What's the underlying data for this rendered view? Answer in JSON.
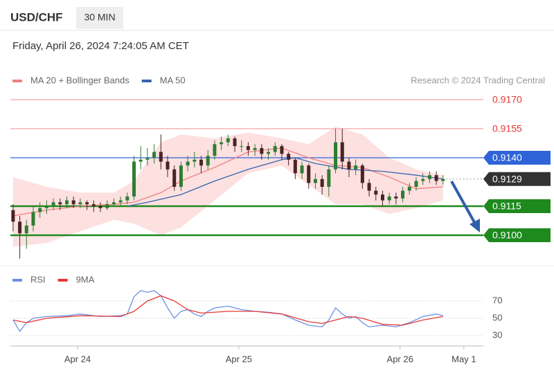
{
  "header": {
    "symbol": "USD/CHF",
    "interval": "30 MIN",
    "datetime": "Friday, April 26, 2024 7:24:05 AM CET",
    "credit": "Research © 2024 Trading Central"
  },
  "chart_data": [
    {
      "type": "candlestick",
      "xlim": [
        -0.4,
        70
      ],
      "ylim": [
        0.9085,
        0.9175
      ],
      "up_color": "#2e7d32",
      "down_color": "#4a2323",
      "candles": [
        [
          0.9113,
          0.9116,
          0.9102,
          0.9107
        ],
        [
          0.9107,
          0.911,
          0.9088,
          0.9101
        ],
        [
          0.9101,
          0.9108,
          0.9093,
          0.9105
        ],
        [
          0.9105,
          0.9115,
          0.9102,
          0.9112
        ],
        [
          0.9112,
          0.9117,
          0.9109,
          0.9114
        ],
        [
          0.9114,
          0.9118,
          0.9111,
          0.9115
        ],
        [
          0.9115,
          0.9119,
          0.9113,
          0.9117
        ],
        [
          0.9117,
          0.9119,
          0.9113,
          0.9116
        ],
        [
          0.9116,
          0.912,
          0.9114,
          0.9118
        ],
        [
          0.9118,
          0.912,
          0.9114,
          0.9116
        ],
        [
          0.9116,
          0.9119,
          0.9114,
          0.9117
        ],
        [
          0.9117,
          0.9118,
          0.9113,
          0.9116
        ],
        [
          0.9116,
          0.9118,
          0.9112,
          0.9115
        ],
        [
          0.9115,
          0.9117,
          0.9112,
          0.9114
        ],
        [
          0.9114,
          0.9118,
          0.9113,
          0.9116
        ],
        [
          0.9116,
          0.9119,
          0.9115,
          0.9117
        ],
        [
          0.9117,
          0.912,
          0.9115,
          0.9118
        ],
        [
          0.9118,
          0.9122,
          0.9116,
          0.912
        ],
        [
          0.912,
          0.9141,
          0.9118,
          0.9138
        ],
        [
          0.9138,
          0.9146,
          0.9134,
          0.9139
        ],
        [
          0.9139,
          0.9145,
          0.9136,
          0.914
        ],
        [
          0.914,
          0.9147,
          0.9137,
          0.9143
        ],
        [
          0.9143,
          0.9152,
          0.9134,
          0.9138
        ],
        [
          0.9138,
          0.9141,
          0.913,
          0.9134
        ],
        [
          0.9134,
          0.9136,
          0.9123,
          0.9125
        ],
        [
          0.9125,
          0.9138,
          0.9123,
          0.9136
        ],
        [
          0.9136,
          0.9141,
          0.9133,
          0.9138
        ],
        [
          0.9138,
          0.9143,
          0.9135,
          0.9139
        ],
        [
          0.9139,
          0.9141,
          0.9132,
          0.9136
        ],
        [
          0.9136,
          0.9144,
          0.9134,
          0.9141
        ],
        [
          0.9141,
          0.9149,
          0.9139,
          0.9147
        ],
        [
          0.9147,
          0.9151,
          0.9144,
          0.9148
        ],
        [
          0.9148,
          0.9152,
          0.9146,
          0.915
        ],
        [
          0.915,
          0.9151,
          0.9143,
          0.9146
        ],
        [
          0.9146,
          0.9149,
          0.9143,
          0.9146
        ],
        [
          0.9146,
          0.9148,
          0.9141,
          0.9144
        ],
        [
          0.9144,
          0.9147,
          0.9141,
          0.9145
        ],
        [
          0.9145,
          0.9147,
          0.9139,
          0.9142
        ],
        [
          0.9142,
          0.9145,
          0.9139,
          0.9143
        ],
        [
          0.9143,
          0.9148,
          0.9141,
          0.9146
        ],
        [
          0.9146,
          0.9147,
          0.9139,
          0.9142
        ],
        [
          0.9142,
          0.9143,
          0.9136,
          0.9139
        ],
        [
          0.9139,
          0.914,
          0.9129,
          0.9132
        ],
        [
          0.9132,
          0.9138,
          0.9129,
          0.9136
        ],
        [
          0.9136,
          0.9137,
          0.9124,
          0.9127
        ],
        [
          0.9127,
          0.9132,
          0.9124,
          0.9129
        ],
        [
          0.9129,
          0.9131,
          0.9121,
          0.9125
        ],
        [
          0.9125,
          0.9136,
          0.912,
          0.9134
        ],
        [
          0.9134,
          0.9155,
          0.9132,
          0.9148
        ],
        [
          0.9148,
          0.9155,
          0.9134,
          0.9138
        ],
        [
          0.9138,
          0.914,
          0.913,
          0.9134
        ],
        [
          0.9134,
          0.9139,
          0.9131,
          0.9136
        ],
        [
          0.9136,
          0.9137,
          0.9124,
          0.9127
        ],
        [
          0.9127,
          0.9129,
          0.912,
          0.9123
        ],
        [
          0.9123,
          0.9125,
          0.9118,
          0.9121
        ],
        [
          0.9121,
          0.9123,
          0.9115,
          0.9118
        ],
        [
          0.9118,
          0.9122,
          0.9116,
          0.912
        ],
        [
          0.912,
          0.9122,
          0.9116,
          0.9119
        ],
        [
          0.9119,
          0.9125,
          0.9117,
          0.9123
        ],
        [
          0.9123,
          0.9127,
          0.9121,
          0.9125
        ],
        [
          0.9125,
          0.913,
          0.9123,
          0.9128
        ],
        [
          0.9128,
          0.9132,
          0.9126,
          0.9129
        ],
        [
          0.9129,
          0.9133,
          0.9127,
          0.9131
        ],
        [
          0.9131,
          0.9133,
          0.9126,
          0.9128
        ],
        [
          0.9128,
          0.9131,
          0.9126,
          0.9129
        ]
      ],
      "series": [
        {
          "name": "MA 20 + Bollinger Bands",
          "color": "#f08080",
          "band_color": "#fde0e0",
          "x": [
            0,
            5,
            10,
            15,
            18,
            22,
            25,
            30,
            35,
            40,
            44,
            48,
            52,
            56,
            60,
            64
          ],
          "values": [
            0.911,
            0.9113,
            0.9115,
            0.9116,
            0.9117,
            0.9122,
            0.9128,
            0.9135,
            0.9143,
            0.9145,
            0.914,
            0.9136,
            0.9135,
            0.913,
            0.9124,
            0.9125
          ],
          "upper": [
            0.913,
            0.9125,
            0.9122,
            0.9122,
            0.9128,
            0.9148,
            0.9152,
            0.915,
            0.9153,
            0.915,
            0.9147,
            0.9156,
            0.9152,
            0.914,
            0.9134,
            0.9131
          ],
          "lower": [
            0.9094,
            0.9096,
            0.9102,
            0.9108,
            0.9106,
            0.91,
            0.9104,
            0.9118,
            0.9132,
            0.9136,
            0.9126,
            0.9116,
            0.9116,
            0.9111,
            0.9114,
            0.9118
          ]
        },
        {
          "name": "MA 50",
          "color": "#3563ad",
          "x": [
            17,
            20,
            25,
            30,
            35,
            40,
            42,
            45,
            50,
            55,
            60,
            64
          ],
          "values": [
            0.9115,
            0.9117,
            0.9121,
            0.9128,
            0.9134,
            0.9139,
            0.914,
            0.9137,
            0.9134,
            0.9133,
            0.9131,
            0.9129
          ]
        }
      ],
      "levels": [
        {
          "value": 0.917,
          "label": "0.9170",
          "style": "text",
          "color": "#e53935",
          "line_color": "#f4a3a3"
        },
        {
          "value": 0.9155,
          "label": "0.9155",
          "style": "text",
          "color": "#e53935",
          "line_color": "#f4a3a3"
        },
        {
          "value": 0.914,
          "label": "0.9140",
          "style": "box",
          "color": "#2f63d8",
          "line_color": "#2f63d8"
        },
        {
          "value": 0.9129,
          "label": "0.9129",
          "style": "current",
          "color": "#333333",
          "line_color": "#999999"
        },
        {
          "value": 0.9115,
          "label": "0.9115",
          "style": "box",
          "color": "#1e8a1e",
          "line_color": "#1e8a1e"
        },
        {
          "value": 0.91,
          "label": "0.9100",
          "style": "box",
          "color": "#1e8a1e",
          "line_color": "#1e8a1e"
        }
      ]
    },
    {
      "type": "line",
      "xlim": [
        -0.4,
        70
      ],
      "ylim": [
        18,
        88
      ],
      "yticks": [
        30,
        50,
        70
      ],
      "grid": true,
      "xticks": [
        {
          "value": 9.6,
          "label": "Apr 24"
        },
        {
          "value": 33.6,
          "label": "Apr 25"
        },
        {
          "value": 57.6,
          "label": "Apr 26"
        },
        {
          "value": 67.1,
          "label": "May 1"
        }
      ],
      "series": [
        {
          "name": "RSI",
          "color": "#6d8fe3",
          "x": [
            0,
            1,
            2,
            3,
            5,
            8,
            10,
            13,
            16,
            17,
            18,
            19,
            20,
            21,
            22,
            23,
            24,
            25,
            26,
            27,
            28,
            29,
            30,
            32,
            34,
            36,
            38,
            40,
            42,
            44,
            46,
            47,
            48,
            49,
            50,
            51,
            52,
            53,
            55,
            57,
            59,
            61,
            63,
            64
          ],
          "values": [
            48,
            35,
            45,
            50,
            52,
            53,
            55,
            52,
            53,
            55,
            75,
            82,
            80,
            82,
            76,
            62,
            50,
            58,
            60,
            55,
            52,
            58,
            62,
            64,
            60,
            58,
            57,
            55,
            48,
            42,
            40,
            48,
            62,
            55,
            50,
            52,
            45,
            40,
            42,
            40,
            45,
            52,
            55,
            53
          ]
        },
        {
          "name": "9MA",
          "color": "#e53935",
          "x": [
            0,
            2,
            5,
            10,
            16,
            18,
            20,
            22,
            24,
            26,
            28,
            32,
            36,
            40,
            44,
            46,
            48,
            50,
            52,
            55,
            58,
            61,
            64
          ],
          "values": [
            48,
            45,
            50,
            53,
            52,
            58,
            70,
            76,
            70,
            60,
            56,
            58,
            58,
            55,
            46,
            44,
            48,
            52,
            50,
            43,
            42,
            48,
            52
          ]
        }
      ]
    }
  ]
}
